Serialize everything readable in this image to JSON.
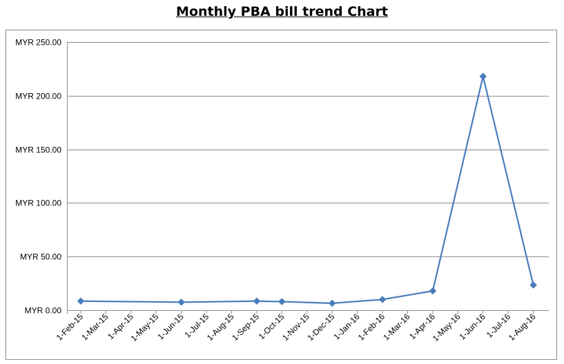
{
  "chart_data": {
    "type": "line",
    "title": "Monthly PBA bill trend Chart",
    "xlabel": "",
    "ylabel": "",
    "categories": [
      "1-Feb-15",
      "1-Mar-15",
      "1-Apr-15",
      "1-May-15",
      "1-Jun-15",
      "1-Jul-15",
      "1-Aug-15",
      "1-Sep-15",
      "1-Oct-15",
      "1-Nov-15",
      "1-Dec-15",
      "1-Jan-16",
      "1-Feb-16",
      "1-Mar-16",
      "1-Apr-16",
      "1-May-16",
      "1-Jun-16",
      "1-Jul-16",
      "1-Aug-16"
    ],
    "ylim": [
      0,
      250
    ],
    "yticks": [
      0,
      50,
      100,
      150,
      200,
      250
    ],
    "ytick_labels": [
      "MYR 0.00",
      "MYR 50.00",
      "MYR 100.00",
      "MYR 150.00",
      "MYR 200.00",
      "MYR 250.00"
    ],
    "grid": true,
    "legend": "none",
    "series": [
      {
        "color": "#4a7ebb",
        "marker": "diamond",
        "points": [
          {
            "x": "1-Feb-15",
            "y": 8.5
          },
          {
            "x": "1-Jun-15",
            "y": 7.5
          },
          {
            "x": "1-Sep-15",
            "y": 8.5
          },
          {
            "x": "1-Oct-15",
            "y": 8.0
          },
          {
            "x": "1-Dec-15",
            "y": 6.5
          },
          {
            "x": "1-Feb-16",
            "y": 10.0
          },
          {
            "x": "1-Apr-16",
            "y": 18.0
          },
          {
            "x": "1-Jun-16",
            "y": 218.0
          },
          {
            "x": "1-Aug-16",
            "y": 23.5
          }
        ]
      }
    ]
  }
}
